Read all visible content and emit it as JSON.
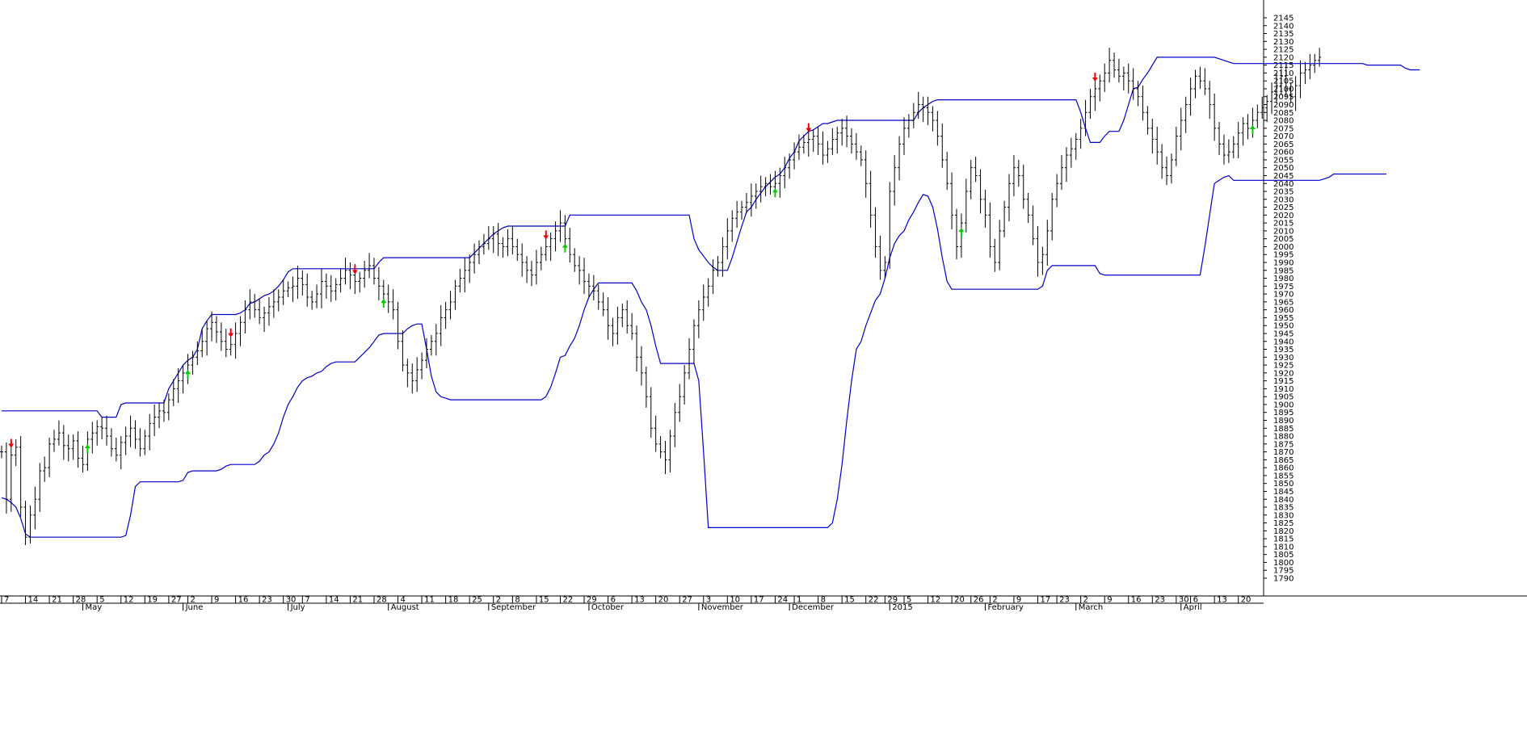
{
  "chart_data": {
    "type": "ohlc",
    "ylim": [
      1790,
      2148
    ],
    "xlabel": "",
    "ylabel": "",
    "y_ticks": [
      1790,
      1795,
      1800,
      1805,
      1810,
      1815,
      1820,
      1825,
      1830,
      1835,
      1840,
      1845,
      1850,
      1855,
      1860,
      1865,
      1870,
      1875,
      1880,
      1885,
      1890,
      1895,
      1900,
      1905,
      1910,
      1915,
      1920,
      1925,
      1930,
      1935,
      1940,
      1945,
      1950,
      1955,
      1960,
      1965,
      1970,
      1975,
      1980,
      1985,
      1990,
      1995,
      2000,
      2005,
      2010,
      2015,
      2020,
      2025,
      2030,
      2035,
      2040,
      2045,
      2050,
      2055,
      2060,
      2065,
      2070,
      2075,
      2080,
      2085,
      2090,
      2095,
      2100,
      2105,
      2110,
      2115,
      2120,
      2125,
      2130,
      2135,
      2140,
      2145
    ],
    "x_day_ticks": [
      {
        "label": "7",
        "bar": 0
      },
      {
        "label": "14",
        "bar": 5
      },
      {
        "label": "21",
        "bar": 10
      },
      {
        "label": "28",
        "bar": 15
      },
      {
        "label": "5",
        "bar": 20
      },
      {
        "label": "12",
        "bar": 25
      },
      {
        "label": "19",
        "bar": 30
      },
      {
        "label": "27",
        "bar": 35
      },
      {
        "label": "2",
        "bar": 39
      },
      {
        "label": "9",
        "bar": 44
      },
      {
        "label": "16",
        "bar": 49
      },
      {
        "label": "23",
        "bar": 54
      },
      {
        "label": "30",
        "bar": 59
      },
      {
        "label": "7",
        "bar": 63
      },
      {
        "label": "14",
        "bar": 68
      },
      {
        "label": "21",
        "bar": 73
      },
      {
        "label": "28",
        "bar": 78
      },
      {
        "label": "4",
        "bar": 83
      },
      {
        "label": "11",
        "bar": 88
      },
      {
        "label": "18",
        "bar": 93
      },
      {
        "label": "25",
        "bar": 98
      },
      {
        "label": "2",
        "bar": 103
      },
      {
        "label": "8",
        "bar": 107
      },
      {
        "label": "15",
        "bar": 112
      },
      {
        "label": "22",
        "bar": 117
      },
      {
        "label": "29",
        "bar": 122
      },
      {
        "label": "6",
        "bar": 127
      },
      {
        "label": "13",
        "bar": 132
      },
      {
        "label": "20",
        "bar": 137
      },
      {
        "label": "27",
        "bar": 142
      },
      {
        "label": "3",
        "bar": 147
      },
      {
        "label": "10",
        "bar": 152
      },
      {
        "label": "17",
        "bar": 157
      },
      {
        "label": "24",
        "bar": 162
      },
      {
        "label": "1",
        "bar": 166
      },
      {
        "label": "8",
        "bar": 171
      },
      {
        "label": "15",
        "bar": 176
      },
      {
        "label": "22",
        "bar": 181
      },
      {
        "label": "29",
        "bar": 185
      },
      {
        "label": "5",
        "bar": 189
      },
      {
        "label": "12",
        "bar": 194
      },
      {
        "label": "20",
        "bar": 199
      },
      {
        "label": "26",
        "bar": 203
      },
      {
        "label": "2",
        "bar": 207
      },
      {
        "label": "9",
        "bar": 212
      },
      {
        "label": "17",
        "bar": 217
      },
      {
        "label": "23",
        "bar": 221
      },
      {
        "label": "2",
        "bar": 226
      },
      {
        "label": "9",
        "bar": 231
      },
      {
        "label": "16",
        "bar": 236
      },
      {
        "label": "23",
        "bar": 241
      },
      {
        "label": "30",
        "bar": 246
      },
      {
        "label": "6",
        "bar": 249
      },
      {
        "label": "13",
        "bar": 254
      },
      {
        "label": "20",
        "bar": 259
      }
    ],
    "x_month_ticks": [
      {
        "label": "May",
        "bar": 17
      },
      {
        "label": "June",
        "bar": 38
      },
      {
        "label": "July",
        "bar": 60
      },
      {
        "label": "August",
        "bar": 81
      },
      {
        "label": "September",
        "bar": 102
      },
      {
        "label": "October",
        "bar": 123
      },
      {
        "label": "November",
        "bar": 146
      },
      {
        "label": "December",
        "bar": 165
      },
      {
        "label": "2015",
        "bar": 186
      },
      {
        "label": "February",
        "bar": 206
      },
      {
        "label": "March",
        "bar": 225
      },
      {
        "label": "April",
        "bar": 247
      }
    ],
    "series": [
      {
        "type": "ohlc",
        "color": "#000000",
        "close": [
          1870,
          1840,
          1868,
          1873,
          1835,
          1816,
          1830,
          1840,
          1858,
          1860,
          1875,
          1878,
          1882,
          1874,
          1872,
          1877,
          1866,
          1862,
          1878,
          1882,
          1886,
          1885,
          1880,
          1872,
          1868,
          1876,
          1880,
          1885,
          1878,
          1872,
          1880,
          1888,
          1892,
          1896,
          1895,
          1903,
          1910,
          1915,
          1920,
          1925,
          1930,
          1934,
          1940,
          1948,
          1952,
          1946,
          1940,
          1935,
          1938,
          1945,
          1952,
          1960,
          1965,
          1960,
          1955,
          1958,
          1962,
          1965,
          1968,
          1972,
          1974,
          1975,
          1980,
          1976,
          1968,
          1965,
          1970,
          1978,
          1975,
          1972,
          1976,
          1980,
          1985,
          1982,
          1978,
          1980,
          1985,
          1988,
          1980,
          1975,
          1970,
          1965,
          1960,
          1940,
          1925,
          1920,
          1915,
          1922,
          1928,
          1935,
          1940,
          1945,
          1955,
          1960,
          1965,
          1975,
          1980,
          1985,
          1990,
          1995,
          2000,
          2002,
          2005,
          2008,
          2002,
          2000,
          2005,
          2000,
          1995,
          1990,
          1985,
          1982,
          1990,
          1995,
          2000,
          2005,
          2010,
          2015,
          2005,
          1995,
          1988,
          1985,
          1978,
          1975,
          1972,
          1965,
          1960,
          1950,
          1945,
          1955,
          1960,
          1950,
          1945,
          1930,
          1920,
          1905,
          1885,
          1875,
          1870,
          1865,
          1880,
          1895,
          1905,
          1920,
          1935,
          1950,
          1960,
          1968,
          1975,
          1985,
          1990,
          2000,
          2010,
          2018,
          2022,
          2025,
          2028,
          2032,
          2035,
          2038,
          2040,
          2038,
          2040,
          2045,
          2050,
          2055,
          2060,
          2063,
          2066,
          2068,
          2070,
          2065,
          2058,
          2062,
          2068,
          2072,
          2075,
          2070,
          2065,
          2060,
          2055,
          2040,
          2020,
          2000,
          1985,
          1990,
          2035,
          2050,
          2065,
          2075,
          2080,
          2085,
          2090,
          2088,
          2085,
          2080,
          2070,
          2055,
          2040,
          2020,
          2000,
          2015,
          2035,
          2050,
          2045,
          2030,
          2020,
          2000,
          1990,
          2010,
          2025,
          2040,
          2050,
          2045,
          2030,
          2020,
          2005,
          1990,
          1995,
          2010,
          2030,
          2040,
          2050,
          2058,
          2062,
          2068,
          2075,
          2085,
          2095,
          2100,
          2105,
          2110,
          2118,
          2112,
          2108,
          2110,
          2105,
          2100,
          2095,
          2085,
          2075,
          2068,
          2060,
          2050,
          2045,
          2055,
          2070,
          2080,
          2090,
          2100,
          2108,
          2105,
          2100,
          2090,
          2075,
          2065,
          2058,
          2060,
          2065,
          2072,
          2078,
          2075,
          2080,
          2085,
          2088,
          2092,
          2098,
          2102,
          2108,
          2100,
          2095,
          2102,
          2110,
          2112,
          2115,
          2118,
          2120
        ]
      },
      {
        "type": "line",
        "color": "#0000cc",
        "values": [
          1896,
          1896,
          1896,
          1896,
          1896,
          1896,
          1896,
          1896,
          1896,
          1896,
          1896,
          1896,
          1896,
          1896,
          1896,
          1896,
          1896,
          1896,
          1896,
          1896,
          1896,
          1892,
          1892,
          1892,
          1892,
          1900,
          1901,
          1901,
          1901,
          1901,
          1901,
          1901,
          1901,
          1901,
          1901,
          1910,
          1915,
          1920,
          1925,
          1928,
          1930,
          1935,
          1948,
          1953,
          1957,
          1957,
          1957,
          1957,
          1957,
          1957,
          1958,
          1960,
          1964,
          1965,
          1967,
          1969,
          1970,
          1972,
          1975,
          1979,
          1984,
          1986,
          1986,
          1986,
          1986,
          1986,
          1986,
          1986,
          1986,
          1986,
          1986,
          1986,
          1986,
          1986,
          1986,
          1986,
          1986,
          1986,
          1986,
          1990,
          1993,
          1993,
          1993,
          1993,
          1993,
          1993,
          1993,
          1993,
          1993,
          1993,
          1993,
          1993,
          1993,
          1993,
          1993,
          1993,
          1993,
          1993,
          1993,
          1996,
          1999,
          2002,
          2005,
          2008,
          2010,
          2012,
          2013,
          2013,
          2013,
          2013,
          2013,
          2013,
          2013,
          2013,
          2013,
          2013,
          2013,
          2013,
          2013,
          2020,
          2020,
          2020,
          2020,
          2020,
          2020,
          2020,
          2020,
          2020,
          2020,
          2020,
          2020,
          2020,
          2020,
          2020,
          2020,
          2020,
          2020,
          2020,
          2020,
          2020,
          2020,
          2020,
          2020,
          2020,
          2020,
          2005,
          1998,
          1994,
          1990,
          1987,
          1985,
          1985,
          1985,
          1993,
          2003,
          2013,
          2022,
          2025,
          2030,
          2034,
          2038,
          2041,
          2044,
          2046,
          2050,
          2056,
          2060,
          2067,
          2070,
          2073,
          2074,
          2076,
          2078,
          2078,
          2079,
          2080,
          2080,
          2080,
          2080,
          2080,
          2080,
          2080,
          2080,
          2080,
          2080,
          2080,
          2080,
          2080,
          2080,
          2080,
          2080,
          2080,
          2085,
          2088,
          2090,
          2092,
          2093,
          2093,
          2093,
          2093,
          2093,
          2093,
          2093,
          2093,
          2093,
          2093,
          2093,
          2093,
          2093,
          2093,
          2093,
          2093,
          2093,
          2093,
          2093,
          2093,
          2093,
          2093,
          2093,
          2093,
          2093,
          2093,
          2093,
          2093,
          2093,
          2093,
          2085,
          2075,
          2066,
          2066,
          2066,
          2070,
          2073,
          2073,
          2073,
          2080,
          2090,
          2100,
          2101,
          2106,
          2110,
          2115,
          2120,
          2120,
          2120,
          2120,
          2120,
          2120,
          2120,
          2120,
          2120,
          2120,
          2120,
          2120,
          2120,
          2119,
          2118,
          2117,
          2116,
          2116,
          2116,
          2116,
          2116,
          2116,
          2116,
          2116,
          2116,
          2116,
          2116,
          2116,
          2116,
          2116,
          2116,
          2116,
          2116,
          2116,
          2116,
          2116,
          2116,
          2116,
          2116,
          2116,
          2116,
          2116,
          2116,
          2116,
          2115,
          2115,
          2115,
          2115,
          2115,
          2115,
          2115,
          2115,
          2113,
          2112,
          2112,
          2112
        ]
      },
      {
        "type": "line",
        "color": "#0000cc",
        "values": [
          1841,
          1840,
          1838,
          1835,
          1828,
          1818,
          1816,
          1816,
          1816,
          1816,
          1816,
          1816,
          1816,
          1816,
          1816,
          1816,
          1816,
          1816,
          1816,
          1816,
          1816,
          1816,
          1816,
          1816,
          1816,
          1816,
          1817,
          1830,
          1848,
          1851,
          1851,
          1851,
          1851,
          1851,
          1851,
          1851,
          1851,
          1851,
          1852,
          1857,
          1858,
          1858,
          1858,
          1858,
          1858,
          1858,
          1859,
          1861,
          1862,
          1862,
          1862,
          1862,
          1862,
          1862,
          1864,
          1868,
          1870,
          1875,
          1882,
          1892,
          1900,
          1905,
          1911,
          1915,
          1917,
          1918,
          1920,
          1921,
          1924,
          1926,
          1927,
          1927,
          1927,
          1927,
          1927,
          1930,
          1933,
          1936,
          1940,
          1944,
          1945,
          1945,
          1945,
          1945,
          1945,
          1948,
          1950,
          1951,
          1951,
          1935,
          1918,
          1908,
          1905,
          1904,
          1903,
          1903,
          1903,
          1903,
          1903,
          1903,
          1903,
          1903,
          1903,
          1903,
          1903,
          1903,
          1903,
          1903,
          1903,
          1903,
          1903,
          1903,
          1903,
          1903,
          1905,
          1911,
          1920,
          1930,
          1931,
          1937,
          1942,
          1950,
          1960,
          1968,
          1973,
          1977,
          1977,
          1977,
          1977,
          1977,
          1977,
          1977,
          1977,
          1972,
          1965,
          1960,
          1950,
          1937,
          1926,
          1926,
          1926,
          1926,
          1926,
          1926,
          1926,
          1926,
          1915,
          1870,
          1822,
          1822,
          1822,
          1822,
          1822,
          1822,
          1822,
          1822,
          1822,
          1822,
          1822,
          1822,
          1822,
          1822,
          1822,
          1822,
          1822,
          1822,
          1822,
          1822,
          1822,
          1822,
          1822,
          1822,
          1822,
          1822,
          1825,
          1840,
          1862,
          1890,
          1915,
          1935,
          1940,
          1950,
          1958,
          1966,
          1970,
          1980,
          1993,
          2002,
          2007,
          2010,
          2017,
          2022,
          2028,
          2033,
          2032,
          2025,
          2011,
          1993,
          1978,
          1973,
          1973,
          1973,
          1973,
          1973,
          1973,
          1973,
          1973,
          1973,
          1973,
          1973,
          1973,
          1973,
          1973,
          1973,
          1973,
          1973,
          1973,
          1973,
          1975,
          1985,
          1988,
          1988,
          1988,
          1988,
          1988,
          1988,
          1988,
          1988,
          1988,
          1988,
          1983,
          1982,
          1982,
          1982,
          1982,
          1982,
          1982,
          1982,
          1982,
          1982,
          1982,
          1982,
          1982,
          1982,
          1982,
          1982,
          1982,
          1982,
          1982,
          1982,
          1982,
          1982,
          2000,
          2020,
          2040,
          2042,
          2044,
          2045,
          2042,
          2042,
          2042,
          2042,
          2042,
          2042,
          2042,
          2042,
          2042,
          2042,
          2042,
          2042,
          2042,
          2042,
          2042,
          2042,
          2042,
          2042,
          2042,
          2043,
          2044,
          2046,
          2046,
          2046,
          2046,
          2046,
          2046,
          2046,
          2046,
          2046,
          2046,
          2046,
          2046
        ]
      }
    ],
    "buy_signals": [
      18,
      39,
      80,
      118,
      162,
      201,
      262
    ],
    "sell_signals": [
      2,
      48,
      74,
      114,
      169,
      229
    ]
  }
}
